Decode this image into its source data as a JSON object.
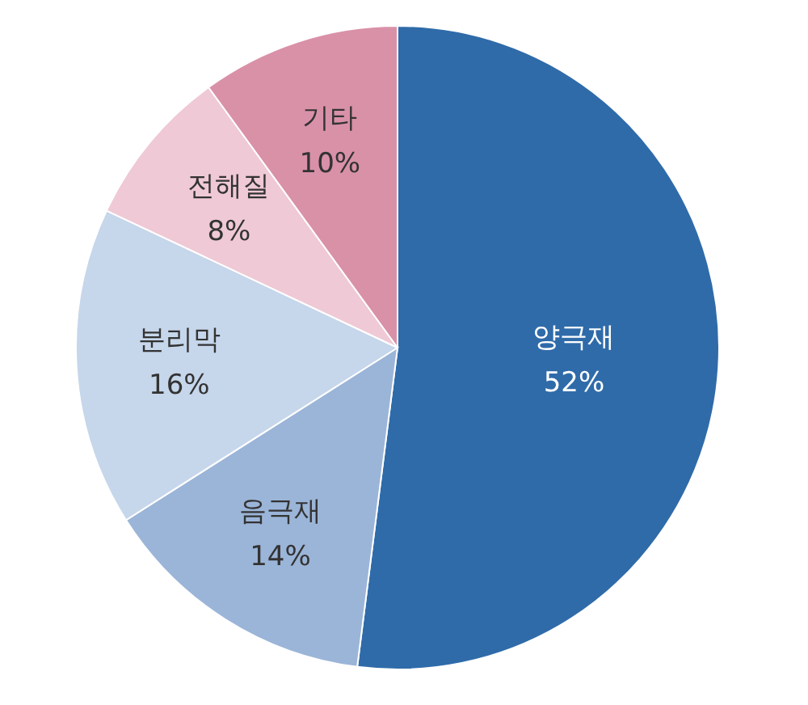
{
  "chart_data": {
    "type": "pie",
    "categories": [
      "양극재",
      "음극재",
      "분리막",
      "전해질",
      "기타"
    ],
    "values": [
      52,
      14,
      16,
      8,
      10
    ],
    "value_labels": [
      "52%",
      "14%",
      "16%",
      "8%",
      "10%"
    ],
    "colors": [
      "#2f6ba9",
      "#9bb5d8",
      "#c6d6eb",
      "#efc9d5",
      "#d991a8"
    ],
    "legend": false
  }
}
